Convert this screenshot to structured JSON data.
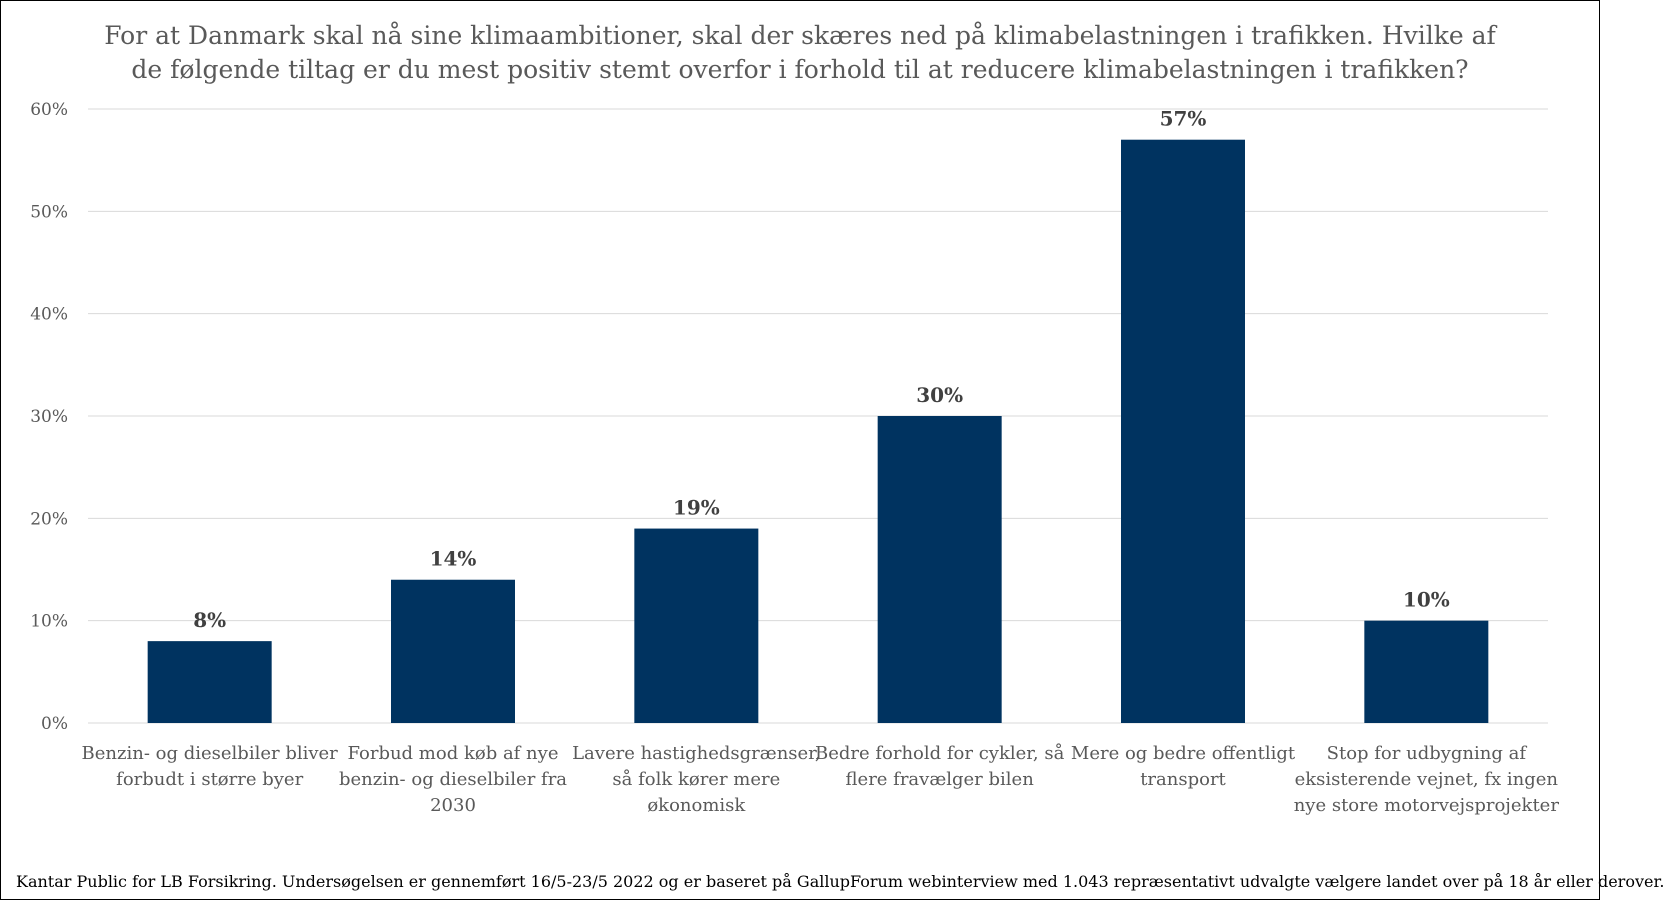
{
  "chart_data": {
    "type": "bar",
    "title_lines": [
      "For at Danmark skal nå sine klimaambitioner, skal der skæres ned på klimabelastningen i trafikken. Hvilke af",
      "de følgende tiltag er du mest positiv stemt overfor i forhold til at reducere klimabelastningen i trafikken?"
    ],
    "categories": [
      [
        "Benzin- og dieselbiler bliver",
        "forbudt i større byer"
      ],
      [
        "Forbud mod køb af nye",
        "benzin- og dieselbiler fra",
        "2030"
      ],
      [
        "Lavere hastighedsgrænser,",
        "så folk kører mere",
        "økonomisk"
      ],
      [
        "Bedre forhold for cykler, så",
        "flere fravælger bilen"
      ],
      [
        "Mere og bedre offentligt",
        "transport"
      ],
      [
        "Stop for udbygning af",
        "eksisterende vejnet, fx ingen",
        "nye store motorvejsprojekter"
      ]
    ],
    "values": [
      8,
      14,
      19,
      30,
      57,
      10
    ],
    "data_labels": [
      "8%",
      "14%",
      "19%",
      "30%",
      "57%",
      "10%"
    ],
    "yticks": [
      "0%",
      "10%",
      "20%",
      "30%",
      "40%",
      "50%",
      "60%"
    ],
    "ylim": [
      0,
      60
    ],
    "grid": true,
    "bar_color": "#003360",
    "grid_color": "#d9d9d9",
    "xlabel": "",
    "ylabel": ""
  },
  "footer": "Kantar Public for LB Forsikring. Undersøgelsen er gennemført 16/5-23/5 2022 og er baseret på GallupForum webinterview med 1.043 repræsentativt udvalgte vælgere landet over på 18 år eller derover."
}
